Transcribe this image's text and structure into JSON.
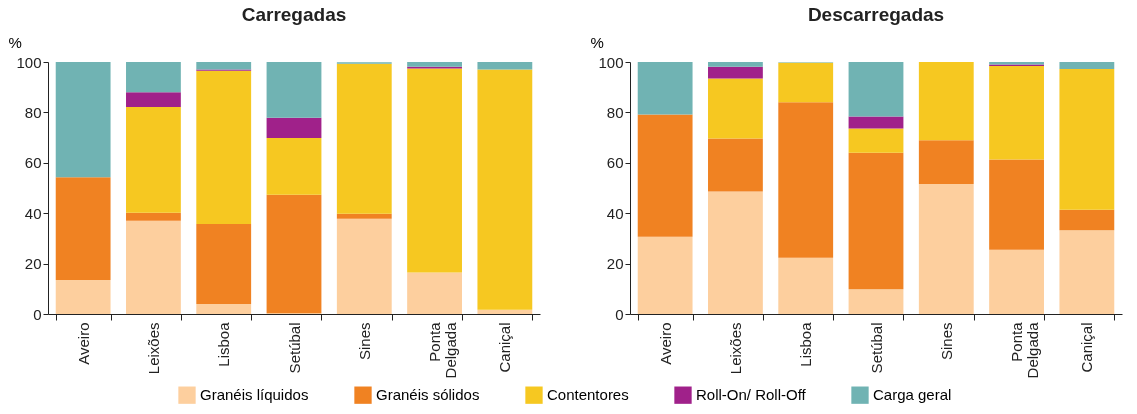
{
  "chart_data": [
    {
      "type": "bar",
      "title": "Carregadas",
      "ylabel": "%",
      "stacked": true,
      "legend": "bottom",
      "grid": false,
      "ylim": [
        0,
        100
      ],
      "yticks": [
        0,
        20,
        40,
        60,
        80,
        100
      ],
      "categories": [
        "Aveiro",
        "Leixões",
        "Lisboa",
        "Setúbal",
        "Sines",
        "Ponta Delgada",
        "Caniçal"
      ],
      "series": [
        {
          "name": "Granéis líquidos",
          "color": "#fdcf9e",
          "values": [
            13.5,
            37,
            4,
            0.3,
            37.8,
            16.5,
            1.7
          ]
        },
        {
          "name": "Granéis sólidos",
          "color": "#f08222",
          "values": [
            40.8,
            3.2,
            31.7,
            47,
            2,
            0,
            0
          ]
        },
        {
          "name": "Contentores",
          "color": "#f6c821",
          "values": [
            0,
            41.9,
            60.8,
            22.5,
            59.5,
            80.9,
            95.3
          ]
        },
        {
          "name": "Roll-On/ Roll-Off",
          "color": "#a0218a",
          "values": [
            0,
            5.9,
            0.5,
            8.1,
            null,
            0.7,
            0
          ]
        },
        {
          "name": "Carga geral",
          "color": "#70b3b3",
          "values": [
            45.7,
            12,
            3,
            22.1,
            0.6,
            1.9,
            3
          ]
        }
      ]
    },
    {
      "type": "bar",
      "title": "Descarregadas",
      "ylabel": "%",
      "stacked": true,
      "legend": "bottom",
      "grid": false,
      "ylim": [
        0,
        100
      ],
      "yticks": [
        0,
        20,
        40,
        60,
        80,
        100
      ],
      "categories": [
        "Aveiro",
        "Leixões",
        "Lisboa",
        "Setúbal",
        "Sines",
        "Ponta Delgada",
        "Caniçal"
      ],
      "series": [
        {
          "name": "Granéis líquidos",
          "color": "#fdcf9e",
          "values": [
            30.7,
            48.6,
            22.3,
            9.8,
            51.6,
            25.5,
            33.2
          ]
        },
        {
          "name": "Granéis sólidos",
          "color": "#f08222",
          "values": [
            48.5,
            21,
            61.7,
            54.2,
            17.3,
            35.8,
            8.2
          ]
        },
        {
          "name": "Contentores",
          "color": "#f6c821",
          "values": [
            0,
            23.9,
            15.7,
            9.6,
            31.1,
            37.1,
            55.8
          ]
        },
        {
          "name": "Roll-On/ Roll-Off",
          "color": "#a0218a",
          "values": [
            0,
            4.6,
            null,
            4.8,
            0,
            0.6,
            0
          ]
        },
        {
          "name": "Carga geral",
          "color": "#70b3b3",
          "values": [
            20.8,
            1.9,
            0.2,
            21.6,
            0,
            1,
            2.8
          ]
        }
      ]
    }
  ]
}
